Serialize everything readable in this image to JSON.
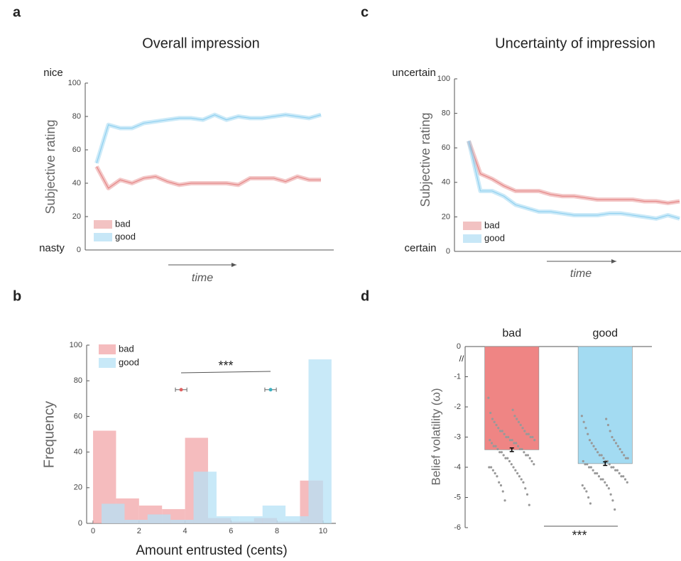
{
  "chart_data": [
    {
      "type": "line",
      "panel_label": "a",
      "title": "Overall impression",
      "ylabel": "Subjective rating",
      "xlabel": "time",
      "y_top_label": "nice",
      "y_bottom_label": "nasty",
      "categories": [
        null,
        null,
        null,
        null,
        null,
        null,
        null,
        null,
        null,
        null,
        null,
        null,
        null,
        null,
        null,
        null,
        null,
        null,
        null,
        null
      ],
      "series": [
        {
          "name": "bad",
          "color": "#e58686",
          "values": [
            50,
            37,
            42,
            40,
            43,
            44,
            41,
            39,
            40,
            40,
            40,
            40,
            39,
            43,
            43,
            43,
            41,
            44,
            42,
            42
          ]
        },
        {
          "name": "good",
          "color": "#8fd0f0",
          "values": [
            52,
            75,
            73,
            73,
            76,
            77,
            78,
            79,
            79,
            78,
            81,
            78,
            80,
            79,
            79,
            80,
            81,
            80,
            79,
            81
          ]
        }
      ],
      "ylim": [
        0,
        100
      ],
      "yticks": [
        0,
        20,
        40,
        60,
        80,
        100
      ],
      "legend": "lower-left"
    },
    {
      "type": "histogram",
      "panel_label": "b",
      "ylabel": "Frequency",
      "xlabel": "Amount entrusted (cents)",
      "annotation": "***",
      "series": [
        {
          "name": "bad",
          "color": "#f2a5a8",
          "mean_color": "#e06060",
          "bins": [
            0,
            1,
            2,
            3,
            4,
            5,
            6,
            7,
            8,
            9,
            10
          ],
          "values": [
            52,
            14,
            10,
            8,
            48,
            3,
            1,
            3,
            1,
            24
          ],
          "mean": 3.83,
          "mean_error": 0.25
        },
        {
          "name": "good",
          "color": "#b6e2f6",
          "mean_color": "#3bb0c0",
          "bins": [
            0.37,
            1.37,
            2.37,
            3.37,
            4.37,
            5.37,
            6.37,
            7.37,
            8.37,
            9.37,
            10.37
          ],
          "values": [
            11,
            2,
            5,
            2,
            29,
            4,
            4,
            10,
            4,
            92
          ],
          "mean": 7.72,
          "mean_error": 0.25
        }
      ],
      "xlim": [
        -0.28,
        10.56
      ],
      "xticks": [
        0,
        2,
        4,
        6,
        8,
        10
      ],
      "ylim": [
        0,
        100
      ],
      "yticks": [
        0,
        20,
        40,
        60,
        80,
        100
      ],
      "legend": "upper-left"
    },
    {
      "type": "line",
      "panel_label": "c",
      "title": "Uncertainty of impression",
      "ylabel": "Subjective rating",
      "xlabel": "time",
      "y_top_label": "uncertain",
      "y_bottom_label": "certain",
      "categories": [
        null,
        null,
        null,
        null,
        null,
        null,
        null,
        null,
        null,
        null,
        null,
        null,
        null,
        null,
        null,
        null,
        null,
        null,
        null
      ],
      "series": [
        {
          "name": "bad",
          "color": "#e58686",
          "values": [
            64,
            45,
            42,
            38,
            35,
            35,
            35,
            33,
            32,
            32,
            31,
            30,
            30,
            30,
            30,
            29,
            29,
            28,
            29
          ]
        },
        {
          "name": "good",
          "color": "#8fd0f0",
          "values": [
            64,
            35,
            35,
            32,
            27,
            25,
            23,
            23,
            22,
            21,
            21,
            21,
            22,
            22,
            21,
            20,
            19,
            21,
            19
          ]
        }
      ],
      "ylim": [
        0,
        100
      ],
      "yticks": [
        0,
        20,
        40,
        60,
        80,
        100
      ],
      "legend": "lower-left"
    },
    {
      "type": "bar",
      "panel_label": "d",
      "ylabel": "Belief volatility (ω)",
      "annotation": "***",
      "categories": [
        "bad",
        "good"
      ],
      "values": [
        -3.42,
        -3.88
      ],
      "errors": [
        0.06,
        0.06
      ],
      "colors": [
        "#ef8584",
        "#a3dbf2"
      ],
      "points": [
        [
          -1.7,
          -2.1,
          -2.2,
          -2.3,
          -2.4,
          -2.4,
          -2.5,
          -2.5,
          -2.6,
          -2.6,
          -2.7,
          -2.7,
          -2.8,
          -2.8,
          -2.8,
          -2.9,
          -2.9,
          -2.9,
          -3.0,
          -3.0,
          -3.0,
          -3.0,
          -3.1,
          -3.1,
          -3.1,
          -3.1,
          -3.2,
          -3.2,
          -3.2,
          -3.3,
          -3.3,
          -3.3,
          -3.4,
          -3.4,
          -3.4,
          -3.5,
          -3.5,
          -3.5,
          -3.6,
          -3.6,
          -3.6,
          -3.7,
          -3.7,
          -3.7,
          -3.8,
          -3.8,
          -3.9,
          -3.9,
          -4.0,
          -4.0,
          -4.0,
          -4.1,
          -4.1,
          -4.2,
          -4.2,
          -4.3,
          -4.3,
          -4.4,
          -4.5,
          -4.5,
          -4.6,
          -4.7,
          -4.8,
          -4.9,
          -5.1,
          -5.25
        ],
        [
          -2.3,
          -2.4,
          -2.5,
          -2.6,
          -2.7,
          -2.8,
          -2.9,
          -3.0,
          -3.1,
          -3.1,
          -3.2,
          -3.2,
          -3.3,
          -3.3,
          -3.4,
          -3.4,
          -3.5,
          -3.5,
          -3.6,
          -3.6,
          -3.6,
          -3.7,
          -3.7,
          -3.7,
          -3.8,
          -3.8,
          -3.8,
          -3.9,
          -3.9,
          -3.9,
          -4.0,
          -4.0,
          -4.0,
          -4.0,
          -4.1,
          -4.1,
          -4.1,
          -4.2,
          -4.2,
          -4.2,
          -4.3,
          -4.3,
          -4.3,
          -4.4,
          -4.4,
          -4.4,
          -4.5,
          -4.5,
          -4.6,
          -4.6,
          -4.7,
          -4.7,
          -4.8,
          -4.9,
          -5.0,
          -5.1,
          -5.2,
          -5.4
        ]
      ],
      "ylim": [
        -6,
        0
      ],
      "yticks": [
        0,
        -1,
        -2,
        -3,
        -4,
        -5,
        -6
      ]
    }
  ]
}
